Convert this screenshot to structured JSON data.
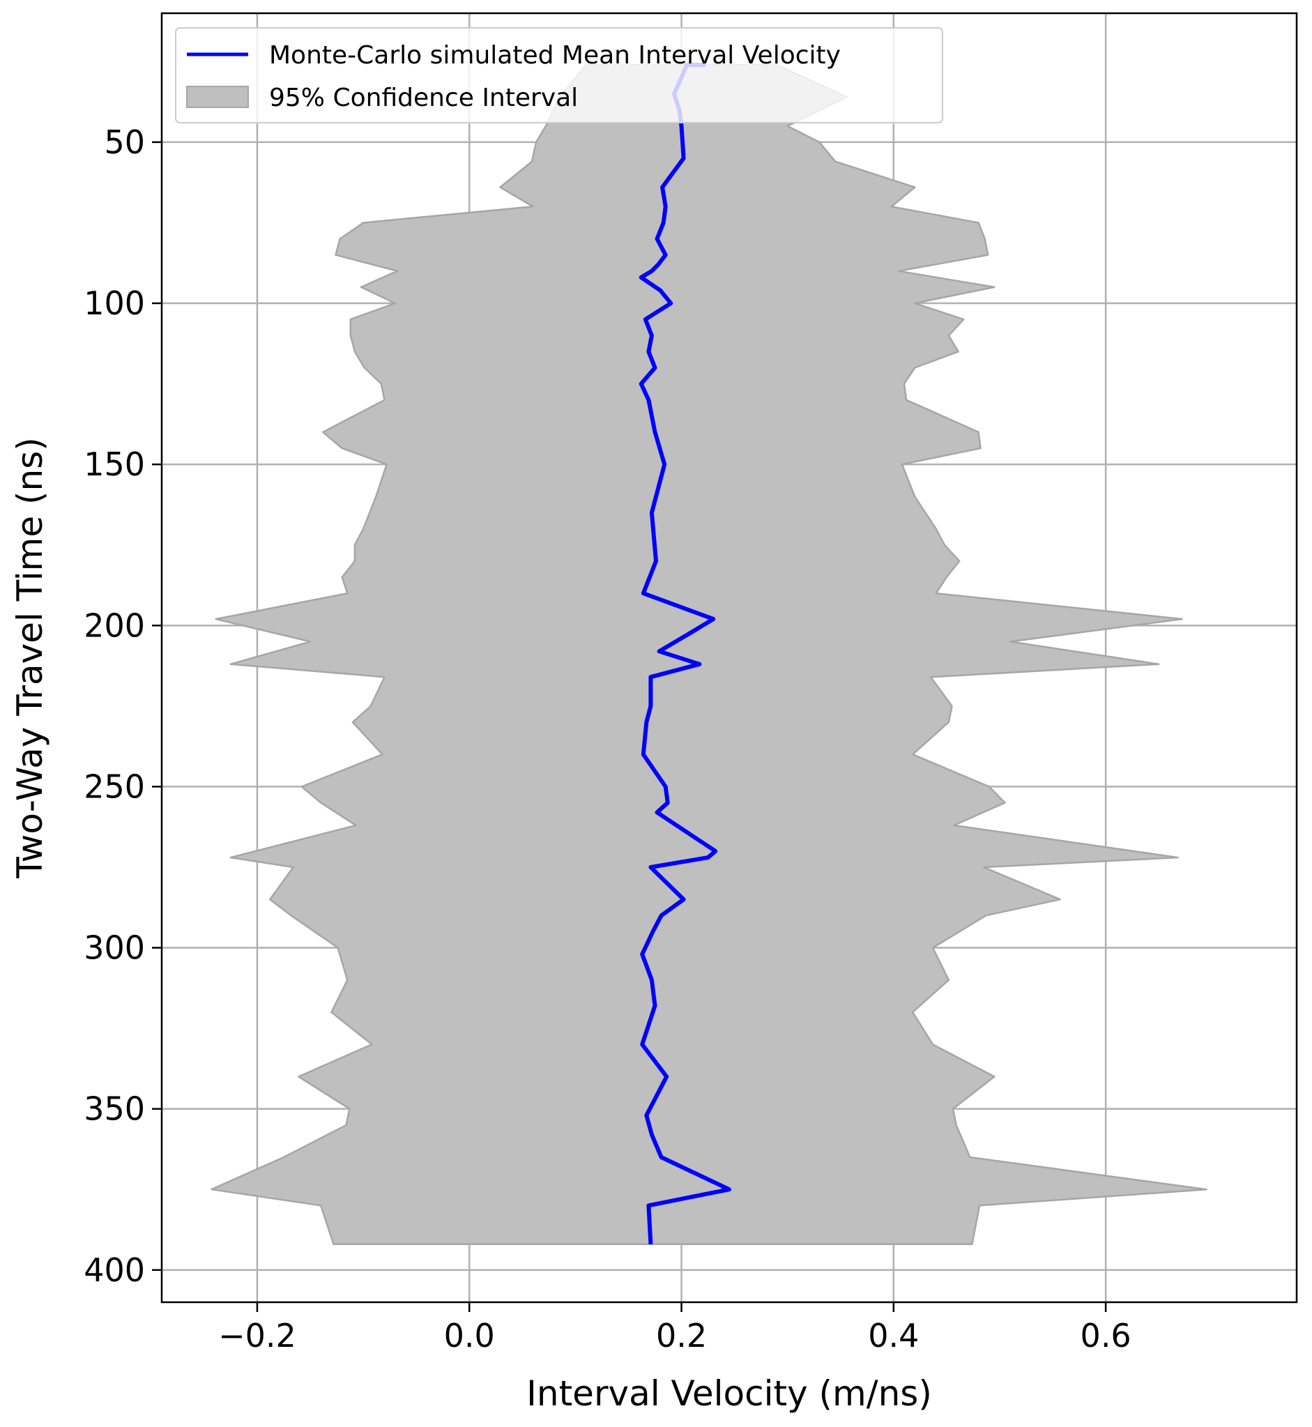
{
  "chart_data": {
    "type": "line",
    "orientation": "inverted-y",
    "xlabel": "Interval Velocity (m/ns)",
    "ylabel": "Two-Way Travel Time (ns)",
    "xlim": [
      -0.29,
      0.78
    ],
    "ylim": [
      410,
      10
    ],
    "xticks": [
      -0.2,
      0.0,
      0.2,
      0.4,
      0.6
    ],
    "xtick_labels": [
      "−0.2",
      "0.0",
      "0.2",
      "0.4",
      "0.6"
    ],
    "yticks": [
      50,
      100,
      150,
      200,
      250,
      300,
      350,
      400
    ],
    "ytick_labels": [
      "50",
      "100",
      "150",
      "200",
      "250",
      "300",
      "350",
      "400"
    ],
    "grid": true,
    "legend_position": "top-left",
    "colors": {
      "mean": "#0000ff",
      "band": "#bfbfbf",
      "band_edge": "#a6a6a6"
    },
    "series": [
      {
        "name": "Monte-Carlo simulated Mean Interval Velocity",
        "kind": "line",
        "t": [
          26,
          26,
          30,
          35,
          40,
          45,
          50,
          55,
          64,
          70,
          75,
          80,
          85,
          88,
          90,
          92,
          96,
          100,
          105,
          110,
          115,
          120,
          125,
          130,
          140,
          150,
          165,
          180,
          190,
          198,
          202,
          208,
          212,
          216,
          225,
          230,
          240,
          250,
          255,
          258,
          270,
          272,
          275,
          285,
          290,
          295,
          302,
          310,
          318,
          330,
          340,
          352,
          358,
          365,
          375,
          380,
          392
        ],
        "v": [
          0.223,
          0.205,
          0.2,
          0.193,
          0.198,
          0.2,
          0.201,
          0.202,
          0.182,
          0.185,
          0.183,
          0.177,
          0.185,
          0.178,
          0.172,
          0.162,
          0.18,
          0.19,
          0.166,
          0.172,
          0.169,
          0.175,
          0.162,
          0.169,
          0.175,
          0.184,
          0.172,
          0.176,
          0.164,
          0.23,
          0.21,
          0.179,
          0.217,
          0.171,
          0.171,
          0.167,
          0.164,
          0.185,
          0.187,
          0.177,
          0.232,
          0.225,
          0.171,
          0.202,
          0.181,
          0.173,
          0.163,
          0.172,
          0.175,
          0.163,
          0.186,
          0.167,
          0.172,
          0.181,
          0.245,
          0.169,
          0.171
        ]
      },
      {
        "name": "95% Confidence Interval",
        "kind": "band",
        "t": [
          26,
          36,
          45,
          50,
          56,
          64,
          70,
          75,
          80,
          85,
          90,
          95,
          100,
          105,
          110,
          115,
          120,
          125,
          130,
          140,
          145,
          150,
          160,
          170,
          175,
          180,
          185,
          190,
          198,
          205,
          212,
          216,
          225,
          230,
          240,
          250,
          255,
          262,
          272,
          275,
          285,
          290,
          300,
          310,
          320,
          330,
          340,
          350,
          355,
          365,
          375,
          380,
          392
        ],
        "lower": [
          0.11,
          0.085,
          0.072,
          0.063,
          0.059,
          0.029,
          0.06,
          -0.1,
          -0.122,
          -0.126,
          -0.068,
          -0.102,
          -0.07,
          -0.112,
          -0.112,
          -0.108,
          -0.099,
          -0.083,
          -0.08,
          -0.138,
          -0.12,
          -0.078,
          -0.088,
          -0.1,
          -0.108,
          -0.108,
          -0.12,
          -0.115,
          -0.239,
          -0.15,
          -0.225,
          -0.08,
          -0.093,
          -0.11,
          -0.082,
          -0.158,
          -0.14,
          -0.107,
          -0.225,
          -0.166,
          -0.188,
          -0.168,
          -0.124,
          -0.115,
          -0.13,
          -0.092,
          -0.161,
          -0.113,
          -0.116,
          -0.175,
          -0.243,
          -0.14,
          -0.128
        ],
        "upper": [
          0.29,
          0.356,
          0.3,
          0.33,
          0.345,
          0.42,
          0.398,
          0.48,
          0.486,
          0.489,
          0.405,
          0.495,
          0.42,
          0.466,
          0.452,
          0.461,
          0.42,
          0.41,
          0.412,
          0.48,
          0.482,
          0.408,
          0.42,
          0.44,
          0.448,
          0.462,
          0.45,
          0.44,
          0.672,
          0.51,
          0.65,
          0.435,
          0.455,
          0.452,
          0.418,
          0.49,
          0.505,
          0.457,
          0.668,
          0.485,
          0.557,
          0.487,
          0.437,
          0.452,
          0.418,
          0.437,
          0.495,
          0.456,
          0.459,
          0.472,
          0.695,
          0.481,
          0.474
        ]
      }
    ]
  }
}
